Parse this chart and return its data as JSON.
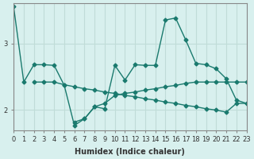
{
  "xlabel": "Humidex (Indice chaleur)",
  "bg_color": "#d8f0ee",
  "line_color": "#1a7a6e",
  "grid_color": "#c0dcd8",
  "xlim": [
    0,
    23
  ],
  "ylim": [
    1.7,
    3.6
  ],
  "yticks": [
    2,
    3
  ],
  "xticks": [
    0,
    1,
    2,
    3,
    4,
    5,
    6,
    7,
    8,
    9,
    10,
    11,
    12,
    13,
    14,
    15,
    16,
    17,
    18,
    19,
    20,
    21,
    22,
    23
  ],
  "series": [
    {
      "x": [
        0,
        1,
        2,
        3,
        4,
        5,
        6,
        7,
        8,
        9,
        10,
        11,
        12,
        13,
        14,
        15,
        16,
        17,
        18,
        19,
        20,
        21,
        22,
        23
      ],
      "y": [
        3.55,
        2.42,
        2.68,
        2.68,
        2.67,
        2.37,
        1.77,
        1.87,
        2.05,
        2.02,
        2.67,
        2.45,
        2.68,
        2.67,
        2.67,
        3.35,
        3.38,
        3.05,
        2.7,
        2.68,
        2.62,
        2.47,
        2.15,
        2.1
      ]
    },
    {
      "x": [
        6,
        7,
        8,
        9,
        10,
        11,
        12,
        13,
        14,
        15,
        16,
        17,
        18,
        19,
        20,
        21,
        22,
        23
      ],
      "y": [
        1.82,
        1.87,
        2.05,
        2.1,
        2.22,
        2.25,
        2.27,
        2.3,
        2.32,
        2.35,
        2.37,
        2.4,
        2.42,
        2.42,
        2.42,
        2.42,
        2.42,
        2.42
      ]
    },
    {
      "x": [
        2,
        3,
        4,
        5,
        6,
        7,
        8,
        9,
        10,
        11,
        12,
        13,
        14,
        15,
        16,
        17,
        18,
        19,
        20,
        21,
        22,
        23
      ],
      "y": [
        2.42,
        2.42,
        2.42,
        2.38,
        2.35,
        2.32,
        2.3,
        2.27,
        2.25,
        2.22,
        2.2,
        2.17,
        2.15,
        2.12,
        2.1,
        2.07,
        2.05,
        2.02,
        2.0,
        1.97,
        2.1,
        2.1
      ]
    }
  ]
}
